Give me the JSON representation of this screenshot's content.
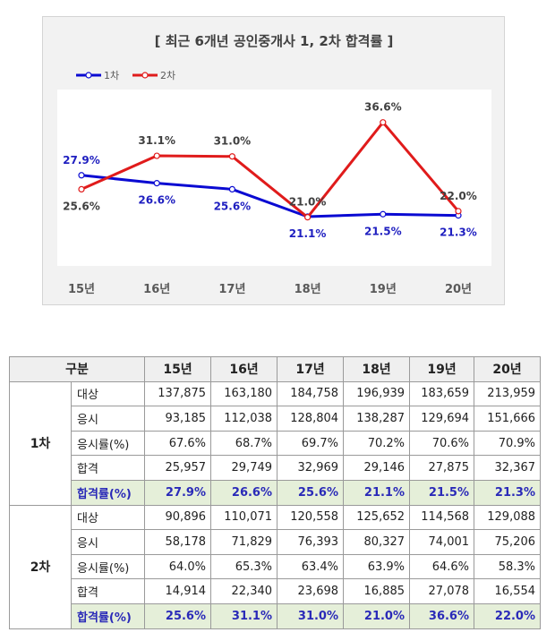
{
  "chart_data": {
    "type": "line",
    "title": "[ 최근 6개년 공인중개사 1, 2차 합격률 ]",
    "categories": [
      "15년",
      "16년",
      "17년",
      "18년",
      "19년",
      "20년"
    ],
    "series": [
      {
        "name": "1차",
        "values": [
          27.9,
          26.6,
          25.6,
          21.1,
          21.5,
          21.3
        ],
        "color": "#0a0ad2",
        "labels": [
          "27.9%",
          "26.6%",
          "25.6%",
          "21.1%",
          "21.5%",
          "21.3%"
        ]
      },
      {
        "name": "2차",
        "values": [
          25.6,
          31.1,
          31.0,
          21.0,
          36.6,
          22.0
        ],
        "color": "#e01b1b",
        "labels": [
          "25.6%",
          "31.1%",
          "31.0%",
          "21.0%",
          "36.6%",
          "22.0%"
        ]
      }
    ],
    "ylim": [
      13,
      42
    ],
    "legend": "top-left",
    "grid": false
  },
  "table": {
    "corner": "구분",
    "years": [
      "15년",
      "16년",
      "17년",
      "18년",
      "19년",
      "20년"
    ],
    "groups": [
      {
        "label": "1차",
        "rows": [
          {
            "item": "대상",
            "values": [
              "137,875",
              "163,180",
              "184,758",
              "196,939",
              "183,659",
              "213,959"
            ]
          },
          {
            "item": "응시",
            "values": [
              "93,185",
              "112,038",
              "128,804",
              "138,287",
              "129,694",
              "151,666"
            ]
          },
          {
            "item": "응시률(%)",
            "values": [
              "67.6%",
              "68.7%",
              "69.7%",
              "70.2%",
              "70.6%",
              "70.9%"
            ]
          },
          {
            "item": "합격",
            "values": [
              "25,957",
              "29,749",
              "32,969",
              "29,146",
              "27,875",
              "32,367"
            ]
          },
          {
            "item": "합격률(%)",
            "values": [
              "27.9%",
              "26.6%",
              "25.6%",
              "21.1%",
              "21.5%",
              "21.3%"
            ]
          }
        ]
      },
      {
        "label": "2차",
        "rows": [
          {
            "item": "대상",
            "values": [
              "90,896",
              "110,071",
              "120,558",
              "125,652",
              "114,568",
              "129,088"
            ]
          },
          {
            "item": "응시",
            "values": [
              "58,178",
              "71,829",
              "76,393",
              "80,327",
              "74,001",
              "75,206"
            ]
          },
          {
            "item": "응시률(%)",
            "values": [
              "64.0%",
              "65.3%",
              "63.4%",
              "63.9%",
              "64.6%",
              "58.3%"
            ]
          },
          {
            "item": "합격",
            "values": [
              "14,914",
              "22,340",
              "23,698",
              "16,885",
              "27,078",
              "16,554"
            ]
          },
          {
            "item": "합격률(%)",
            "values": [
              "25.6%",
              "31.1%",
              "31.0%",
              "21.0%",
              "36.6%",
              "22.0%"
            ]
          }
        ]
      }
    ]
  }
}
